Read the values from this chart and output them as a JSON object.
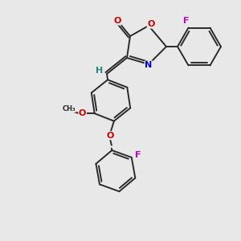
{
  "bg_color": "#e8e8e8",
  "bond_color": "#2a2a2a",
  "atom_colors": {
    "O": "#cc0000",
    "N": "#0000cc",
    "F": "#cc00cc",
    "H": "#228888",
    "C": "#2a2a2a"
  },
  "font_size": 8,
  "line_width": 1.4,
  "figsize": [
    3.0,
    3.0
  ],
  "dpi": 100
}
